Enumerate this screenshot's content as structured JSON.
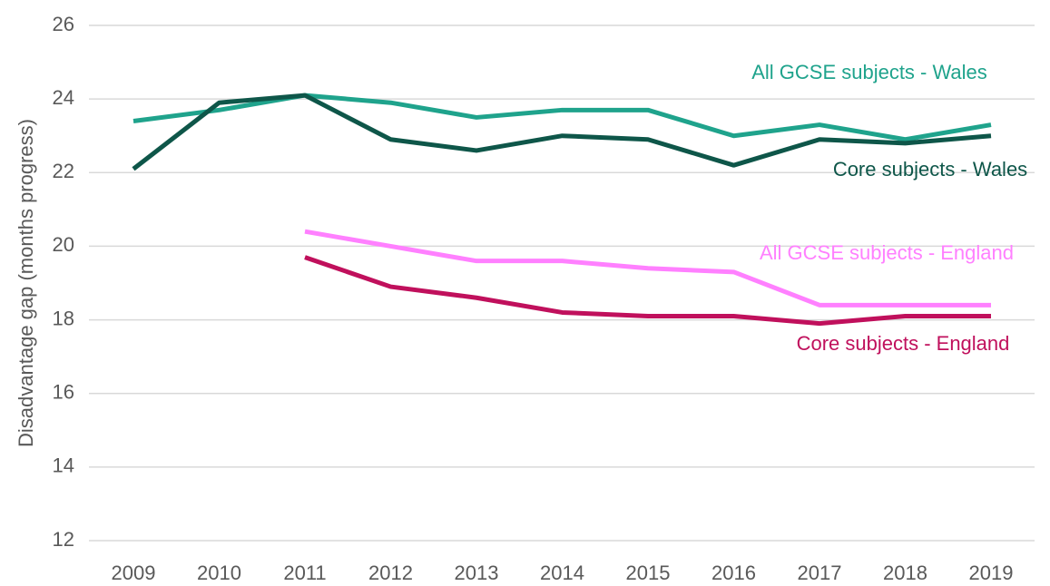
{
  "chart_data": {
    "type": "line",
    "y_label": "Disadvantage gap (months progress)",
    "categories": [
      "2009",
      "2010",
      "2011",
      "2012",
      "2013",
      "2014",
      "2015",
      "2016",
      "2017",
      "2018",
      "2019"
    ],
    "ylim": [
      12,
      26
    ],
    "yticks": [
      12,
      14,
      16,
      18,
      20,
      22,
      24,
      26
    ],
    "grid": true,
    "series": [
      {
        "name": "All GCSE subjects - Wales",
        "color": "#1fa38c",
        "values": [
          23.4,
          23.7,
          24.1,
          23.9,
          23.5,
          23.7,
          23.7,
          23.0,
          23.3,
          22.9,
          23.3
        ]
      },
      {
        "name": "Core subjects - Wales",
        "color": "#0e5649",
        "values": [
          22.1,
          23.9,
          24.1,
          22.9,
          22.6,
          23.0,
          22.9,
          22.2,
          22.9,
          22.8,
          23.0
        ]
      },
      {
        "name": "All GCSE subjects - England",
        "color": "#ff80ff",
        "values": [
          null,
          null,
          20.4,
          20.0,
          19.6,
          19.6,
          19.4,
          19.3,
          18.4,
          18.4,
          18.4
        ]
      },
      {
        "name": "Core subjects - England",
        "color": "#c0105c",
        "values": [
          null,
          null,
          19.7,
          18.9,
          18.6,
          18.2,
          18.1,
          18.1,
          17.9,
          18.1,
          18.1
        ]
      }
    ]
  }
}
